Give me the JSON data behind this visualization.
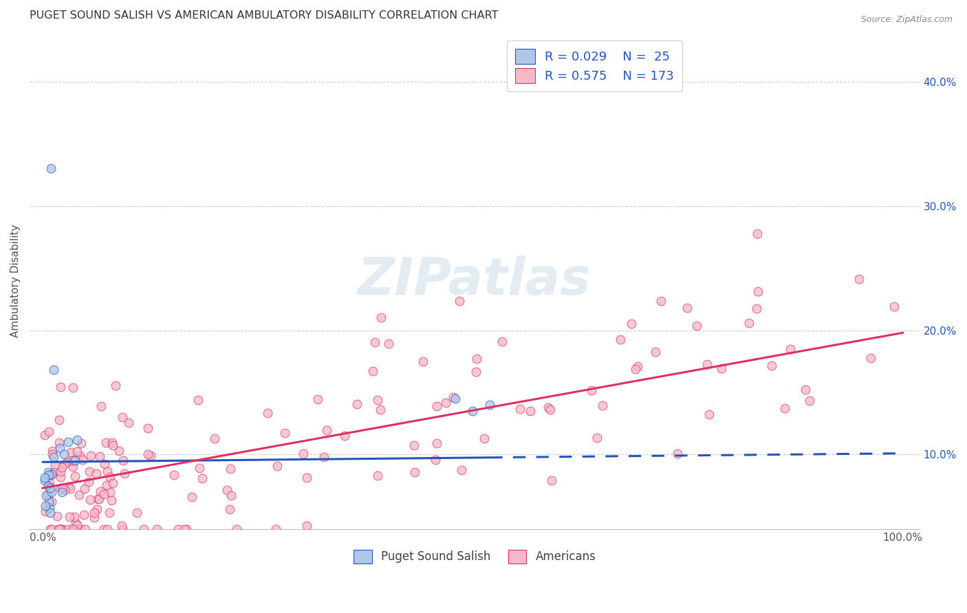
{
  "title": "PUGET SOUND SALISH VS AMERICAN AMBULATORY DISABILITY CORRELATION CHART",
  "source": "Source: ZipAtlas.com",
  "ylabel_label": "Ambulatory Disability",
  "legend_blue_label": "Puget Sound Salish",
  "legend_pink_label": "Americans",
  "blue_color": "#aec6e8",
  "pink_color": "#f5b8c8",
  "blue_line_color": "#2255bb",
  "pink_line_color": "#e03060",
  "legend_text_color": "#2255bb",
  "background_color": "#ffffff",
  "grid_color": "#cccccc",
  "ytick_vals": [
    0.1,
    0.2,
    0.3,
    0.4
  ],
  "ytick_labels": [
    "10.0%",
    "20.0%",
    "30.0%",
    "40.0%"
  ],
  "xlim": [
    -0.015,
    1.02
  ],
  "ylim": [
    0.04,
    0.44
  ],
  "blue_line_x_solid_end": 0.52,
  "blue_line_slope": 0.007,
  "blue_line_intercept": 0.094,
  "pink_line_slope": 0.125,
  "pink_line_intercept": 0.073
}
